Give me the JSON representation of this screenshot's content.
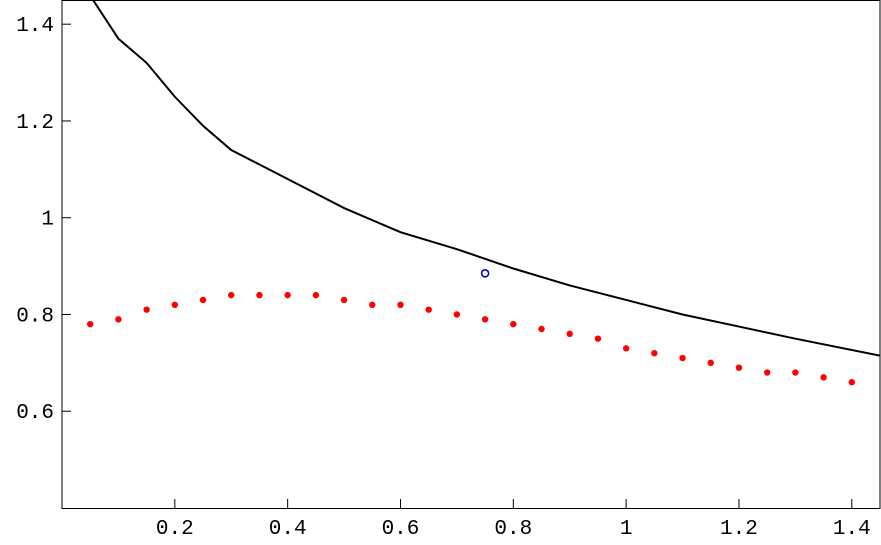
{
  "chart_data": {
    "type": "scatter",
    "xlim": [
      0,
      1.45
    ],
    "ylim": [
      0.4,
      1.45
    ],
    "xticks": [
      0.2,
      0.4,
      0.6,
      0.8,
      1,
      1.2,
      1.4
    ],
    "yticks": [
      0.6,
      0.8,
      1,
      1.2,
      1.4
    ],
    "series": [
      {
        "style": "line",
        "color": "#000000",
        "x": [
          0.055,
          0.1,
          0.15,
          0.2,
          0.25,
          0.3,
          0.35,
          0.4,
          0.5,
          0.6,
          0.7,
          0.8,
          0.9,
          1.0,
          1.1,
          1.2,
          1.3,
          1.45
        ],
        "values": [
          1.45,
          1.37,
          1.32,
          1.25,
          1.19,
          1.14,
          1.11,
          1.08,
          1.02,
          0.97,
          0.935,
          0.895,
          0.86,
          0.83,
          0.8,
          0.775,
          0.75,
          0.715
        ]
      },
      {
        "style": "points",
        "color": "#ff0000",
        "x": [
          0.05,
          0.1,
          0.15,
          0.2,
          0.25,
          0.3,
          0.35,
          0.4,
          0.45,
          0.5,
          0.55,
          0.6,
          0.65,
          0.7,
          0.75,
          0.8,
          0.85,
          0.9,
          0.95,
          1.0,
          1.05,
          1.1,
          1.15,
          1.2,
          1.25,
          1.3,
          1.35,
          1.4
        ],
        "values": [
          0.78,
          0.79,
          0.81,
          0.82,
          0.83,
          0.84,
          0.84,
          0.84,
          0.84,
          0.83,
          0.82,
          0.82,
          0.81,
          0.8,
          0.79,
          0.78,
          0.77,
          0.76,
          0.75,
          0.73,
          0.72,
          0.71,
          0.7,
          0.69,
          0.68,
          0.68,
          0.67,
          0.66
        ]
      },
      {
        "style": "open-circle",
        "color": "#0000cc",
        "x": [
          0.75
        ],
        "values": [
          0.885
        ]
      }
    ]
  }
}
